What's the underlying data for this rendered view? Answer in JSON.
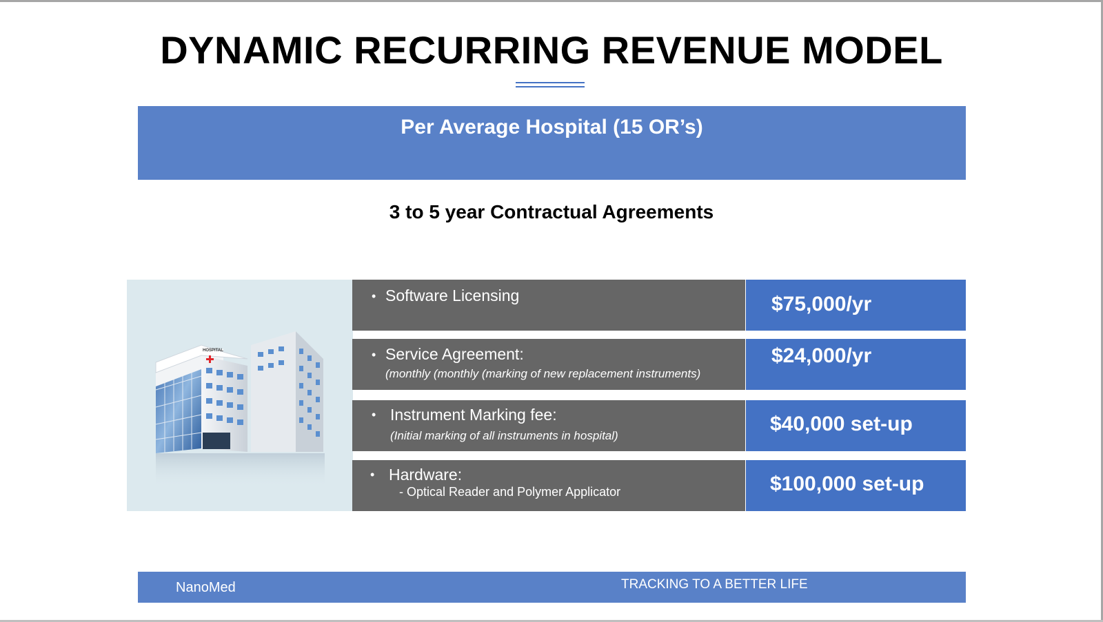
{
  "slide": {
    "title": "DYNAMIC RECURRING REVENUE MODEL",
    "header": "Per Average Hospital (15 OR’s)",
    "subtitle": "3 to 5 year Contractual Agreements",
    "image": {
      "sign_text": "HOSPITAL"
    },
    "bullet_symbol": "•",
    "rows": [
      {
        "label": "Software Licensing",
        "price": "$75,000/yr"
      },
      {
        "label": "Service Agreement:",
        "note": "(monthly (monthly (marking of new replacement instruments)",
        "price": "$24,000/yr"
      },
      {
        "label": "Instrument Marking fee:",
        "note": "(Initial marking of all instruments in hospital)",
        "price": "$40,000 set-up"
      },
      {
        "label": "Hardware:",
        "sub": "- Optical Reader and Polymer Applicator",
        "price": "$100,000 set-up"
      }
    ],
    "footer": {
      "left": "NanoMed",
      "right": "TRACKING TO A BETTER LIFE"
    },
    "colors": {
      "band": "#5981c8",
      "price_cell": "#4472c4",
      "label_cell": "#666666",
      "image_panel": "#dce9ee"
    }
  }
}
